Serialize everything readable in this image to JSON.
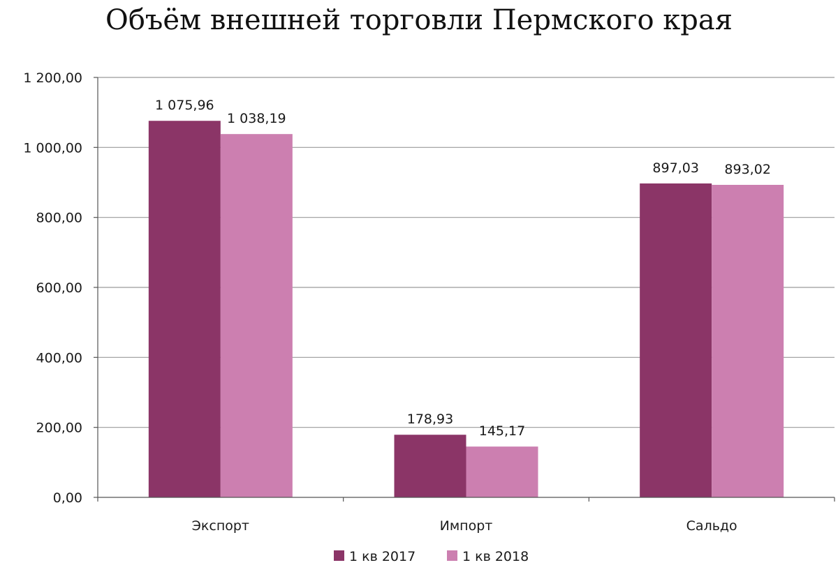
{
  "chart_data": {
    "type": "bar",
    "title": "Объём внешней торговли Пермского края",
    "categories": [
      "Экспорт",
      "Импорт",
      "Сальдо"
    ],
    "series": [
      {
        "name": "1 кв 2017",
        "values": [
          1075.96,
          178.93,
          897.03
        ],
        "labels": [
          "1 075,96",
          "178,93",
          "897,03"
        ],
        "color": "#8b3567"
      },
      {
        "name": "1 кв 2018",
        "values": [
          1038.19,
          145.17,
          893.02
        ],
        "labels": [
          "1 038,19",
          "145,17",
          "893,02"
        ],
        "color": "#cc7fb0"
      }
    ],
    "ylim": [
      0,
      1200
    ],
    "yticks": [
      0,
      200,
      400,
      600,
      800,
      1000,
      1200
    ],
    "ytick_labels": [
      "0,00",
      "200,00",
      "400,00",
      "600,00",
      "800,00",
      "1 000,00",
      "1 200,00"
    ],
    "xlabel": "",
    "ylabel": "",
    "grid": true,
    "legend_position": "bottom"
  }
}
